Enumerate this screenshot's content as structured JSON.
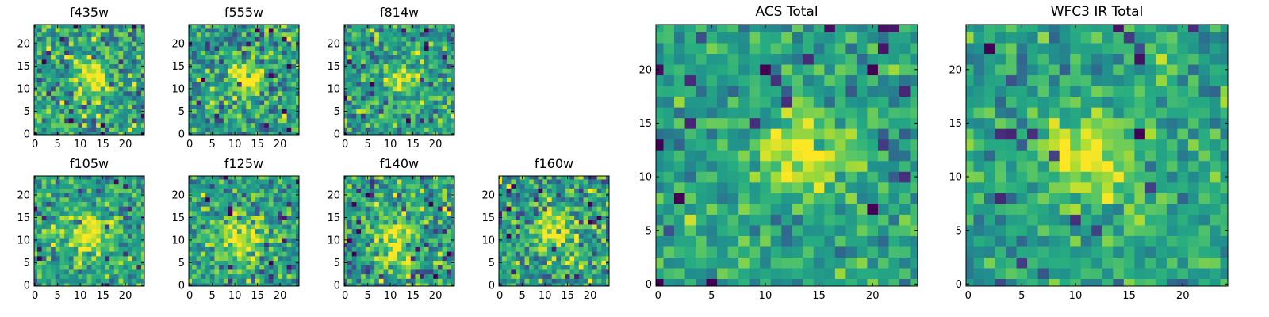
{
  "chart_data": [
    {
      "type": "heatmap",
      "title": "f435w",
      "colormap": "viridis",
      "grid_size": 25,
      "x_ticks": [
        0,
        5,
        10,
        15,
        20
      ],
      "y_ticks": [
        0,
        5,
        10,
        15,
        20
      ],
      "xlim": [
        0,
        24
      ],
      "ylim": [
        0,
        24
      ],
      "bright_center": [
        13,
        12
      ],
      "bright_radius": 2.5,
      "noise": 0.5,
      "seed": 11
    },
    {
      "type": "heatmap",
      "title": "f555w",
      "colormap": "viridis",
      "grid_size": 25,
      "x_ticks": [
        0,
        5,
        10,
        15,
        20
      ],
      "y_ticks": [
        0,
        5,
        10,
        15,
        20
      ],
      "xlim": [
        0,
        24
      ],
      "ylim": [
        0,
        24
      ],
      "bright_center": [
        13,
        12
      ],
      "bright_radius": 2.5,
      "noise": 0.5,
      "seed": 23
    },
    {
      "type": "heatmap",
      "title": "f814w",
      "colormap": "viridis",
      "grid_size": 25,
      "x_ticks": [
        0,
        5,
        10,
        15,
        20
      ],
      "y_ticks": [
        0,
        5,
        10,
        15,
        20
      ],
      "xlim": [
        0,
        24
      ],
      "ylim": [
        0,
        24
      ],
      "bright_center": [
        13,
        12
      ],
      "bright_radius": 2.3,
      "noise": 0.45,
      "seed": 37
    },
    {
      "type": "heatmap",
      "title": "f105w",
      "colormap": "viridis",
      "grid_size": 25,
      "x_ticks": [
        0,
        5,
        10,
        15,
        20
      ],
      "y_ticks": [
        0,
        5,
        10,
        15,
        20
      ],
      "xlim": [
        0,
        24
      ],
      "ylim": [
        0,
        24
      ],
      "bright_center": [
        12,
        11
      ],
      "bright_radius": 3.5,
      "noise": 0.4,
      "seed": 41
    },
    {
      "type": "heatmap",
      "title": "f125w",
      "colormap": "viridis",
      "grid_size": 25,
      "x_ticks": [
        0,
        5,
        10,
        15,
        20
      ],
      "y_ticks": [
        0,
        5,
        10,
        15,
        20
      ],
      "xlim": [
        0,
        24
      ],
      "ylim": [
        0,
        24
      ],
      "bright_center": [
        11,
        10
      ],
      "bright_radius": 3.5,
      "noise": 0.45,
      "seed": 53
    },
    {
      "type": "heatmap",
      "title": "f140w",
      "colormap": "viridis",
      "grid_size": 25,
      "x_ticks": [
        0,
        5,
        10,
        15,
        20
      ],
      "y_ticks": [
        0,
        5,
        10,
        15,
        20
      ],
      "xlim": [
        0,
        24
      ],
      "ylim": [
        0,
        24
      ],
      "bright_center": [
        11,
        10
      ],
      "bright_radius": 3.5,
      "noise": 0.5,
      "seed": 67
    },
    {
      "type": "heatmap",
      "title": "f160w",
      "colormap": "viridis",
      "grid_size": 25,
      "x_ticks": [
        0,
        5,
        10,
        15,
        20
      ],
      "y_ticks": [
        0,
        5,
        10,
        15,
        20
      ],
      "xlim": [
        0,
        24
      ],
      "ylim": [
        0,
        24
      ],
      "bright_center": [
        12,
        12
      ],
      "bright_radius": 3.0,
      "noise": 0.55,
      "seed": 79
    },
    {
      "type": "heatmap",
      "title": "ACS Total",
      "colormap": "viridis",
      "grid_size": 25,
      "x_ticks": [
        0,
        5,
        10,
        15,
        20
      ],
      "y_ticks": [
        0,
        5,
        10,
        15,
        20
      ],
      "xlim": [
        0,
        24
      ],
      "ylim": [
        0,
        24
      ],
      "bright_center": [
        13.5,
        12.5
      ],
      "bright_radius": 2.6,
      "noise": 0.35,
      "seed": 97
    },
    {
      "type": "heatmap",
      "title": "WFC3 IR Total",
      "colormap": "viridis",
      "grid_size": 25,
      "x_ticks": [
        0,
        5,
        10,
        15,
        20
      ],
      "y_ticks": [
        0,
        5,
        10,
        15,
        20
      ],
      "xlim": [
        0,
        24
      ],
      "ylim": [
        0,
        24
      ],
      "bright_center": [
        11.5,
        11.5
      ],
      "bright_radius": 3.0,
      "noise": 0.35,
      "seed": 113
    }
  ]
}
